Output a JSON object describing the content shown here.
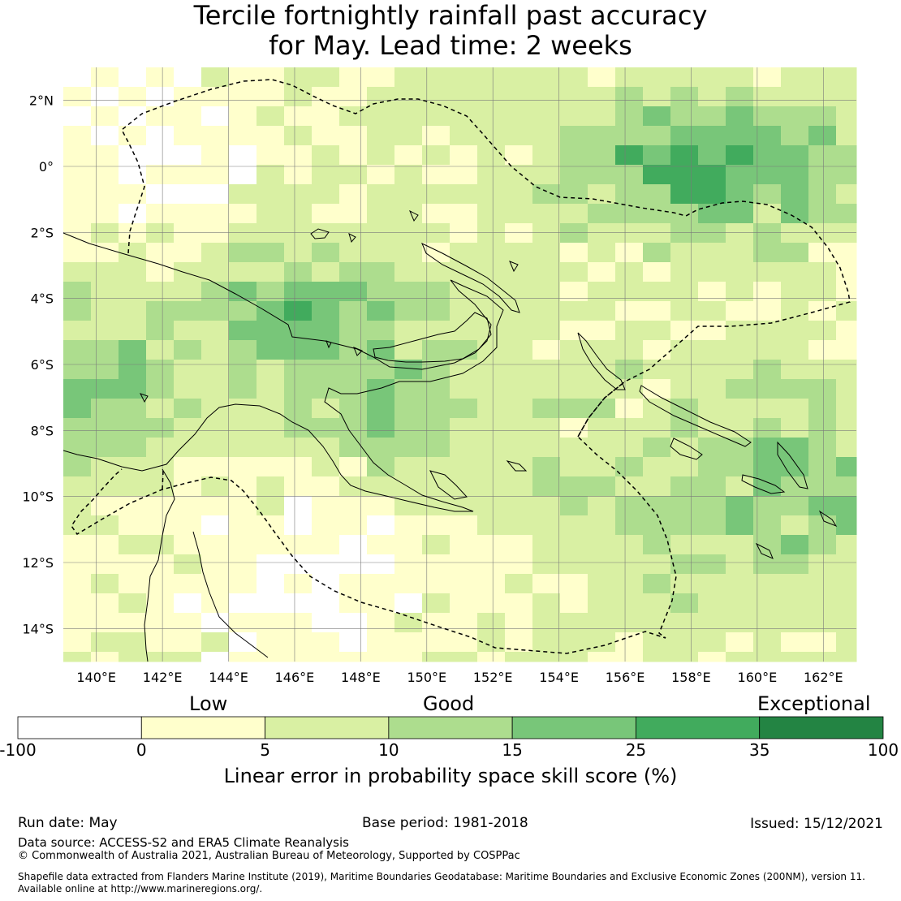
{
  "title": {
    "line1": "Tercile fortnightly rainfall past accuracy",
    "line2": "for May. Lead time: 2 weeks"
  },
  "map": {
    "lon_range": [
      139,
      163
    ],
    "lat_range": [
      -15,
      3
    ],
    "lon_ticks": [
      "140°E",
      "142°E",
      "144°E",
      "146°E",
      "148°E",
      "150°E",
      "152°E",
      "154°E",
      "156°E",
      "158°E",
      "160°E",
      "162°E"
    ],
    "lat_ticks": [
      "2°N",
      "0°",
      "2°S",
      "4°S",
      "6°S",
      "8°S",
      "10°S",
      "12°S",
      "14°S"
    ]
  },
  "legend": {
    "categories": {
      "low": "Low",
      "good": "Good",
      "exceptional": "Exceptional"
    },
    "ticks": [
      "-100",
      "0",
      "5",
      "10",
      "15",
      "25",
      "35",
      "100"
    ],
    "colors": [
      "#ffffff",
      "#ffffcc",
      "#d9f0a3",
      "#addd8e",
      "#78c679",
      "#41ab5d",
      "#238443"
    ],
    "label": "Linear error in probability space skill score (%)"
  },
  "footer": {
    "run_date": "Run date: May",
    "base_period": "Base period: 1981-2018",
    "issued": "Issued: 15/12/2021",
    "data_source": "Data source: ACCESS-S2 and ERA5 Climate Reanalysis",
    "copyright": "© Commonwealth of Australia 2021, Australian Bureau of Meteorology, Supported by COSPPac",
    "shapefile1": "Shapefile data extracted from Flanders Marine Institute (2019), Maritime Boundaries Geodatabase: Maritime Boundaries and Exclusive Economic Zones (200NM), version 11.",
    "shapefile2": "Available online at http://www.marineregions.org/."
  }
}
